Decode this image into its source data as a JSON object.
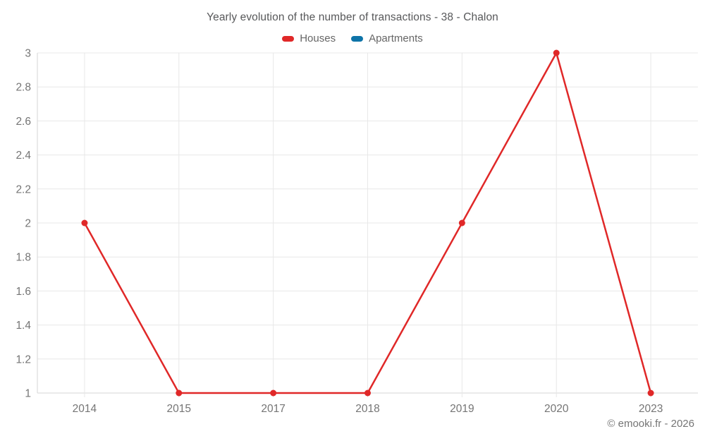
{
  "title": "Yearly evolution of the number of transactions - 38 - Chalon",
  "footer": "© emooki.fr - 2026",
  "chart_data": {
    "type": "line",
    "title": "Yearly evolution of the number of transactions - 38 - Chalon",
    "categories": [
      "2014",
      "2015",
      "2017",
      "2018",
      "2019",
      "2020",
      "2023"
    ],
    "series": [
      {
        "name": "Houses",
        "color": "#e02828",
        "values": [
          2,
          1,
          1,
          1,
          2,
          3,
          1
        ]
      },
      {
        "name": "Apartments",
        "color": "#0e74a8",
        "values": []
      }
    ],
    "xlabel": "",
    "ylabel": "",
    "ylim": [
      1,
      3
    ],
    "yticks": [
      1,
      1.2,
      1.4,
      1.6,
      1.8,
      2,
      2.2,
      2.4,
      2.6,
      2.8,
      3
    ],
    "grid": true,
    "legend_position": "top",
    "colors": {
      "gridline": "#e8e8e8",
      "axis_line": "#d6d6d6",
      "tick_label": "#757575",
      "title_text": "#57585a",
      "legend_text": "#666666"
    }
  }
}
